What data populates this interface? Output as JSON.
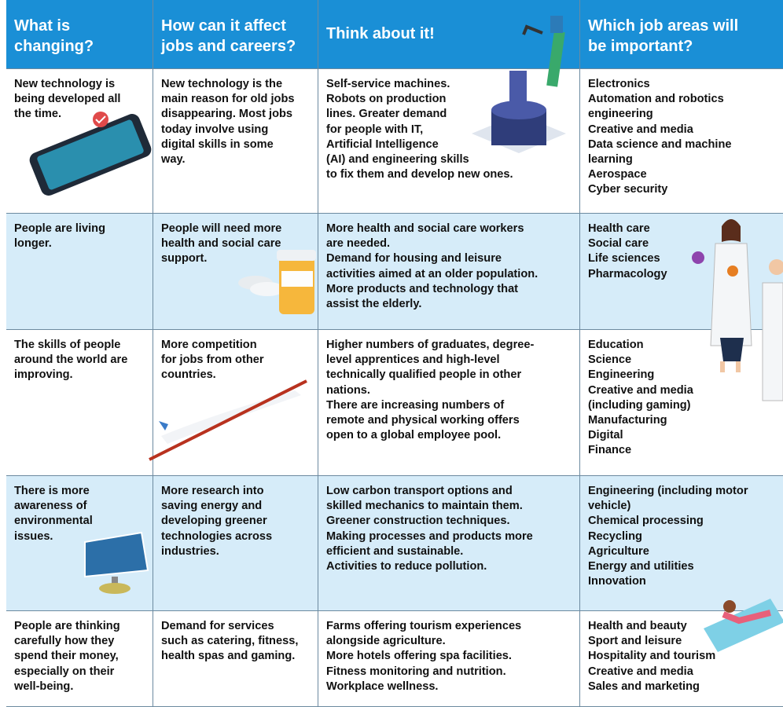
{
  "table": {
    "header": [
      [
        "What is",
        "changing?"
      ],
      [
        "How can it affect",
        "jobs and careers?"
      ],
      [
        "Think about it!"
      ],
      [
        "Which job areas will",
        "be important?"
      ]
    ],
    "rows": [
      [
        [
          "New technology is",
          "being developed all",
          "the time."
        ],
        [
          "New technology is the",
          "main reason for old jobs",
          "disappearing. Most jobs",
          "today involve using",
          "digital skills in some",
          "way."
        ],
        [
          "Self-service machines.",
          "Robots on production",
          "lines. Greater demand",
          "for people with IT,",
          "Artificial Intelligence",
          "(AI) and engineering skills",
          "to fix them and develop new ones."
        ],
        [
          "Electronics",
          "Automation and robotics",
          "engineering",
          "Creative and media",
          "Data science and machine",
          "learning",
          "Aerospace",
          "Cyber security"
        ]
      ],
      [
        [
          "People are living",
          "longer."
        ],
        [
          "People will need more",
          "health and social care",
          "support."
        ],
        [
          "More health and social care workers",
          "are needed.",
          "Demand for housing and leisure",
          "activities aimed at an older population.",
          "More products and technology that",
          "assist the elderly."
        ],
        [
          "Health care",
          "Social care",
          "Life sciences",
          "Pharmacology"
        ]
      ],
      [
        [
          "The skills of people",
          "around the world are",
          "improving."
        ],
        [
          "More competition",
          "for jobs from other",
          "countries."
        ],
        [
          "Higher numbers of graduates, degree-",
          "level apprentices and high-level",
          "technically qualified people in other",
          "nations.",
          "There are increasing numbers of",
          "remote and physical working offers",
          "open to a global employee pool."
        ],
        [
          "Education",
          "Science",
          "Engineering",
          "Creative and media",
          "(including gaming)",
          "Manufacturing",
          "Digital",
          "Finance"
        ]
      ],
      [
        [
          "There is more",
          "awareness of",
          "environmental",
          "issues."
        ],
        [
          "More research into",
          "saving energy and",
          "developing greener",
          "technologies across",
          "industries."
        ],
        [
          "Low carbon transport options and",
          "skilled mechanics to maintain them.",
          "Greener construction techniques.",
          "Making processes and products more",
          "efficient and sustainable.",
          "Activities to reduce pollution."
        ],
        [
          "Engineering (including motor",
          "vehicle)",
          "Chemical processing",
          "Recycling",
          "Agriculture",
          "Energy and utilities",
          "Innovation"
        ]
      ],
      [
        [
          "People are thinking",
          "carefully how they",
          "spend their money,",
          "especially on their",
          "well-being."
        ],
        [
          "Demand for services",
          "such as catering, fitness,",
          "health spas and gaming."
        ],
        [
          "Farms offering tourism experiences",
          "alongside agriculture.",
          "More hotels offering spa facilities.",
          "Fitness monitoring and nutrition.",
          "Workplace wellness."
        ],
        [
          "Health and beauty",
          "Sport and leisure",
          "Hospitality and tourism",
          "Creative and media",
          "Sales and marketing"
        ]
      ]
    ]
  }
}
